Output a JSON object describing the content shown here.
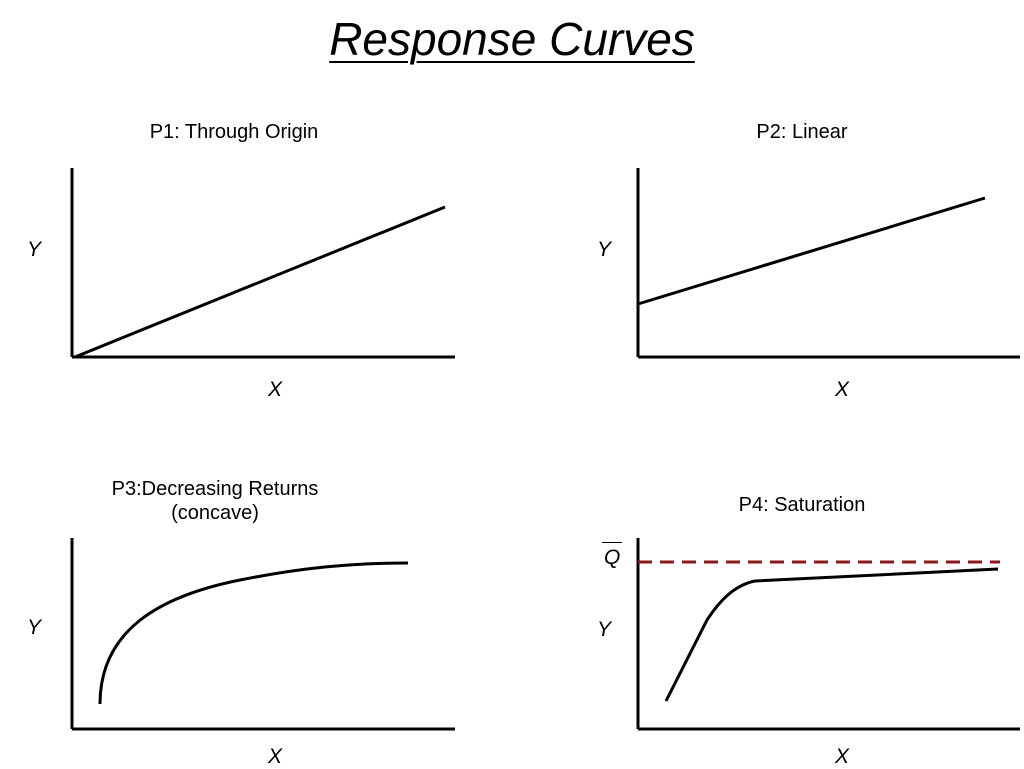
{
  "title": "Response Curves",
  "panels": {
    "p1": {
      "title": "P1: Through Origin",
      "xlabel": "X",
      "ylabel": "Y"
    },
    "p2": {
      "title": "P2: Linear",
      "xlabel": "X",
      "ylabel": "Y"
    },
    "p3": {
      "title_line1": "P3:Decreasing Returns",
      "title_line2": "(concave)",
      "xlabel": "X",
      "ylabel": "Y"
    },
    "p4": {
      "title": "P4: Saturation",
      "xlabel": "X",
      "ylabel": "Y",
      "ceiling_label": "Q"
    }
  },
  "colors": {
    "axis": "#000000",
    "curve": "#000000",
    "ceiling": "#8b1a1a"
  }
}
